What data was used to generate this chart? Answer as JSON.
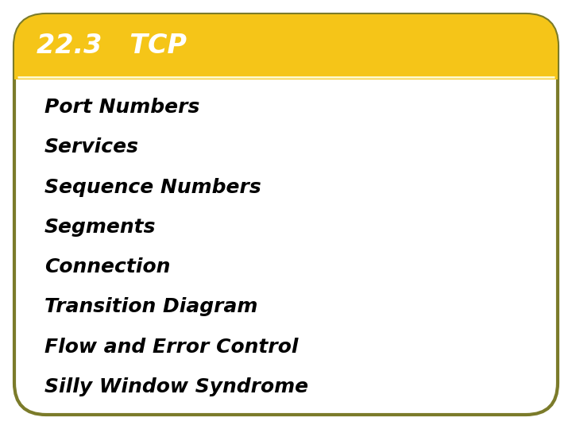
{
  "title": "22.3   TCP",
  "title_bg_color": "#F5C518",
  "title_text_color": "#FFFFFF",
  "body_bg_color": "#FFFFFF",
  "outer_bg_color": "#FFFFFF",
  "border_color": "#7B7B2A",
  "separator_color": "#FFFACD",
  "items": [
    "Port Numbers",
    "Services",
    "Sequence Numbers",
    "Segments",
    "Connection",
    "Transition Diagram",
    "Flow and Error Control",
    "Silly Window Syndrome"
  ],
  "item_text_color": "#000000",
  "item_fontsize": 18,
  "title_fontsize": 24,
  "fig_width": 7.2,
  "fig_height": 5.4,
  "dpi": 100
}
